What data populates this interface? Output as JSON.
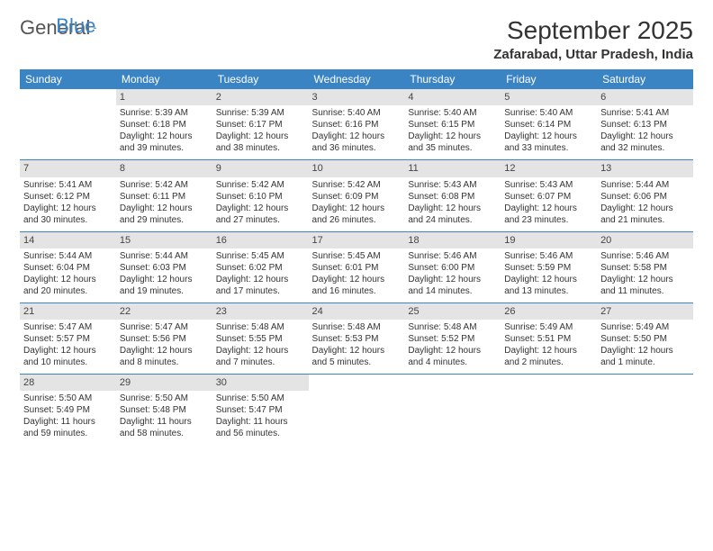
{
  "logo": {
    "word1": "General",
    "word2": "Blue"
  },
  "title": "September 2025",
  "subtitle": "Zafarabad, Uttar Pradesh, India",
  "colors": {
    "header_bg": "#3a84c4",
    "header_fg": "#ffffff",
    "daynum_bg": "#e4e4e4",
    "border": "#3a84c4",
    "logo_accent": "#3a84c4",
    "text": "#333333"
  },
  "calendar": {
    "type": "table",
    "columns": [
      "Sunday",
      "Monday",
      "Tuesday",
      "Wednesday",
      "Thursday",
      "Friday",
      "Saturday"
    ],
    "weeks": [
      [
        null,
        {
          "n": "1",
          "sr": "5:39 AM",
          "ss": "6:18 PM",
          "dl": "12 hours and 39 minutes."
        },
        {
          "n": "2",
          "sr": "5:39 AM",
          "ss": "6:17 PM",
          "dl": "12 hours and 38 minutes."
        },
        {
          "n": "3",
          "sr": "5:40 AM",
          "ss": "6:16 PM",
          "dl": "12 hours and 36 minutes."
        },
        {
          "n": "4",
          "sr": "5:40 AM",
          "ss": "6:15 PM",
          "dl": "12 hours and 35 minutes."
        },
        {
          "n": "5",
          "sr": "5:40 AM",
          "ss": "6:14 PM",
          "dl": "12 hours and 33 minutes."
        },
        {
          "n": "6",
          "sr": "5:41 AM",
          "ss": "6:13 PM",
          "dl": "12 hours and 32 minutes."
        }
      ],
      [
        {
          "n": "7",
          "sr": "5:41 AM",
          "ss": "6:12 PM",
          "dl": "12 hours and 30 minutes."
        },
        {
          "n": "8",
          "sr": "5:42 AM",
          "ss": "6:11 PM",
          "dl": "12 hours and 29 minutes."
        },
        {
          "n": "9",
          "sr": "5:42 AM",
          "ss": "6:10 PM",
          "dl": "12 hours and 27 minutes."
        },
        {
          "n": "10",
          "sr": "5:42 AM",
          "ss": "6:09 PM",
          "dl": "12 hours and 26 minutes."
        },
        {
          "n": "11",
          "sr": "5:43 AM",
          "ss": "6:08 PM",
          "dl": "12 hours and 24 minutes."
        },
        {
          "n": "12",
          "sr": "5:43 AM",
          "ss": "6:07 PM",
          "dl": "12 hours and 23 minutes."
        },
        {
          "n": "13",
          "sr": "5:44 AM",
          "ss": "6:06 PM",
          "dl": "12 hours and 21 minutes."
        }
      ],
      [
        {
          "n": "14",
          "sr": "5:44 AM",
          "ss": "6:04 PM",
          "dl": "12 hours and 20 minutes."
        },
        {
          "n": "15",
          "sr": "5:44 AM",
          "ss": "6:03 PM",
          "dl": "12 hours and 19 minutes."
        },
        {
          "n": "16",
          "sr": "5:45 AM",
          "ss": "6:02 PM",
          "dl": "12 hours and 17 minutes."
        },
        {
          "n": "17",
          "sr": "5:45 AM",
          "ss": "6:01 PM",
          "dl": "12 hours and 16 minutes."
        },
        {
          "n": "18",
          "sr": "5:46 AM",
          "ss": "6:00 PM",
          "dl": "12 hours and 14 minutes."
        },
        {
          "n": "19",
          "sr": "5:46 AM",
          "ss": "5:59 PM",
          "dl": "12 hours and 13 minutes."
        },
        {
          "n": "20",
          "sr": "5:46 AM",
          "ss": "5:58 PM",
          "dl": "12 hours and 11 minutes."
        }
      ],
      [
        {
          "n": "21",
          "sr": "5:47 AM",
          "ss": "5:57 PM",
          "dl": "12 hours and 10 minutes."
        },
        {
          "n": "22",
          "sr": "5:47 AM",
          "ss": "5:56 PM",
          "dl": "12 hours and 8 minutes."
        },
        {
          "n": "23",
          "sr": "5:48 AM",
          "ss": "5:55 PM",
          "dl": "12 hours and 7 minutes."
        },
        {
          "n": "24",
          "sr": "5:48 AM",
          "ss": "5:53 PM",
          "dl": "12 hours and 5 minutes."
        },
        {
          "n": "25",
          "sr": "5:48 AM",
          "ss": "5:52 PM",
          "dl": "12 hours and 4 minutes."
        },
        {
          "n": "26",
          "sr": "5:49 AM",
          "ss": "5:51 PM",
          "dl": "12 hours and 2 minutes."
        },
        {
          "n": "27",
          "sr": "5:49 AM",
          "ss": "5:50 PM",
          "dl": "12 hours and 1 minute."
        }
      ],
      [
        {
          "n": "28",
          "sr": "5:50 AM",
          "ss": "5:49 PM",
          "dl": "11 hours and 59 minutes."
        },
        {
          "n": "29",
          "sr": "5:50 AM",
          "ss": "5:48 PM",
          "dl": "11 hours and 58 minutes."
        },
        {
          "n": "30",
          "sr": "5:50 AM",
          "ss": "5:47 PM",
          "dl": "11 hours and 56 minutes."
        },
        null,
        null,
        null,
        null
      ]
    ],
    "labels": {
      "sunrise": "Sunrise: ",
      "sunset": "Sunset: ",
      "daylight": "Daylight: "
    }
  }
}
